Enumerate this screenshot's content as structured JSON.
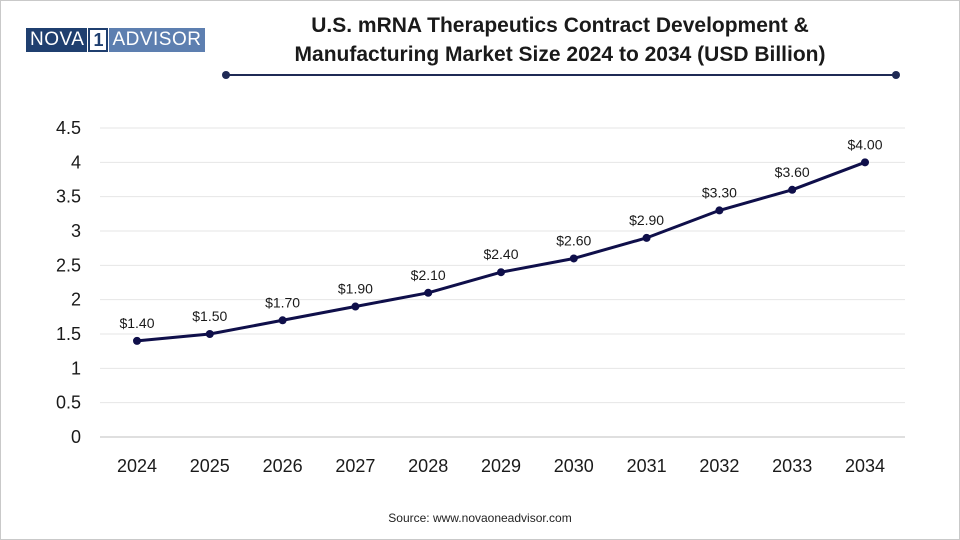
{
  "logo": {
    "part1": "NOVA",
    "part2": "1",
    "part3": "ADVISOR"
  },
  "source_text": "Source: www.novaoneadvisor.com",
  "colors": {
    "line": "#0f0f4a",
    "marker": "#0f0f4a",
    "grid": "#e6e6e6",
    "axis": "#bfbfbf",
    "title_rule": "#1f2a55"
  },
  "chart_data": {
    "type": "line",
    "title": "U.S. mRNA Therapeutics Contract Development & Manufacturing Market Size 2024 to 2034 (USD Billion)",
    "title_lines": [
      "U.S. mRNA Therapeutics Contract Development &",
      "Manufacturing Market Size 2024 to 2034 (USD Billion)"
    ],
    "categories": [
      "2024",
      "2025",
      "2026",
      "2027",
      "2028",
      "2029",
      "2030",
      "2031",
      "2032",
      "2033",
      "2034"
    ],
    "series": [
      {
        "name": "Market Size (USD Billion)",
        "values": [
          1.4,
          1.5,
          1.7,
          1.9,
          2.1,
          2.4,
          2.6,
          2.9,
          3.3,
          3.6,
          4.0
        ],
        "labels": [
          "$1.40",
          "$1.50",
          "$1.70",
          "$1.90",
          "$2.10",
          "$2.40",
          "$2.60",
          "$2.90",
          "$3.30",
          "$3.60",
          "$4.00"
        ]
      }
    ],
    "yticks": [
      "0",
      "0.5",
      "1",
      "1.5",
      "2",
      "2.5",
      "3",
      "3.5",
      "4",
      "4.5"
    ],
    "ylim": [
      0,
      4.5
    ],
    "xlabel": "",
    "ylabel": "",
    "grid": true,
    "legend": "none"
  }
}
